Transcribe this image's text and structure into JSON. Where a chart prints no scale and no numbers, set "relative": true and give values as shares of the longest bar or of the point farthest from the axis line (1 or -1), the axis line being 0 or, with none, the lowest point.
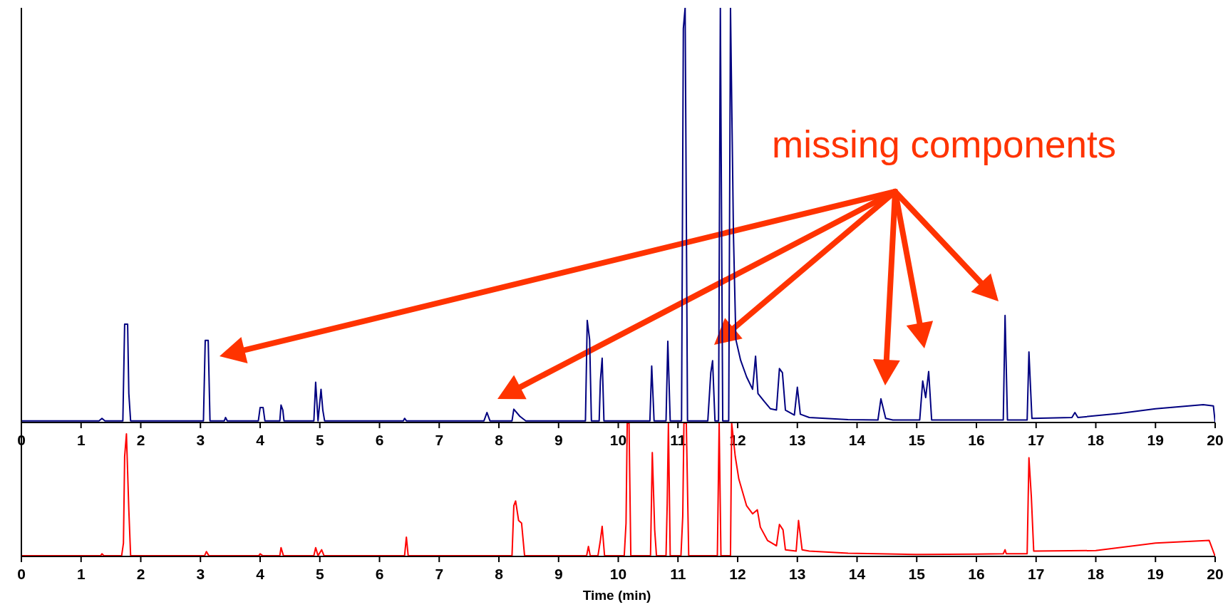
{
  "chart_data": [
    {
      "type": "line",
      "color": "#000080",
      "relative": true,
      "xlim": [
        0,
        20
      ],
      "xticks": [
        0,
        1,
        2,
        3,
        4,
        5,
        6,
        7,
        8,
        9,
        10,
        11,
        12,
        13,
        14,
        15,
        16,
        17,
        18,
        19,
        20
      ],
      "annotations": [
        "missing components"
      ],
      "x": [
        0,
        1.3,
        1.35,
        1.4,
        1.7,
        1.73,
        1.78,
        1.8,
        1.83,
        3.05,
        3.08,
        3.13,
        3.16,
        3.4,
        3.42,
        3.45,
        3.97,
        4.0,
        4.05,
        4.08,
        4.33,
        4.35,
        4.38,
        4.4,
        4.9,
        4.93,
        4.97,
        5.02,
        5.05,
        5.08,
        6.4,
        6.42,
        6.45,
        7.75,
        7.8,
        7.85,
        8.22,
        8.25,
        8.35,
        8.45,
        9.45,
        9.48,
        9.52,
        9.55,
        9.68,
        9.7,
        9.73,
        9.76,
        10.53,
        10.56,
        10.6,
        10.8,
        10.83,
        10.87,
        11.06,
        11.09,
        11.12,
        11.16,
        11.5,
        11.55,
        11.58,
        11.62,
        11.68,
        11.71,
        11.75,
        11.85,
        11.88,
        11.93,
        11.97,
        12.05,
        12.15,
        12.25,
        12.3,
        12.34,
        12.45,
        12.55,
        12.65,
        12.7,
        12.75,
        12.8,
        12.95,
        13.0,
        13.05,
        13.2,
        13.85,
        14.35,
        14.4,
        14.48,
        14.6,
        15.05,
        15.1,
        15.15,
        15.2,
        15.25,
        16.45,
        16.48,
        16.52,
        16.85,
        16.88,
        16.93,
        17.6,
        17.65,
        17.7,
        18.4,
        19.0,
        19.8,
        19.97,
        20
      ],
      "values": [
        0.004,
        0.004,
        0.01,
        0.004,
        0.004,
        0.237,
        0.237,
        0.07,
        0.004,
        0.004,
        0.198,
        0.198,
        0.004,
        0.004,
        0.012,
        0.004,
        0.004,
        0.036,
        0.036,
        0.004,
        0.004,
        0.042,
        0.03,
        0.004,
        0.004,
        0.097,
        0.004,
        0.08,
        0.03,
        0.004,
        0.004,
        0.01,
        0.004,
        0.004,
        0.024,
        0.004,
        0.004,
        0.032,
        0.015,
        0.004,
        0.004,
        0.246,
        0.2,
        0.004,
        0.004,
        0.1,
        0.155,
        0.004,
        0.004,
        0.136,
        0.004,
        0.004,
        0.196,
        0.004,
        0.004,
        0.95,
        1,
        0.004,
        0.004,
        0.12,
        0.149,
        0.004,
        0.004,
        1,
        0.004,
        0.004,
        1,
        0.45,
        0.2,
        0.15,
        0.11,
        0.08,
        0.16,
        0.07,
        0.05,
        0.033,
        0.03,
        0.13,
        0.12,
        0.03,
        0.018,
        0.085,
        0.02,
        0.012,
        0.007,
        0.006,
        0.057,
        0.01,
        0.006,
        0.006,
        0.1,
        0.06,
        0.123,
        0.006,
        0.006,
        0.258,
        0.006,
        0.006,
        0.17,
        0.01,
        0.012,
        0.024,
        0.012,
        0.022,
        0.033,
        0.043,
        0.04,
        0
      ]
    },
    {
      "type": "line",
      "color": "#ff0000",
      "relative": true,
      "xlim": [
        0,
        20
      ],
      "xticks": [
        0,
        1,
        2,
        3,
        4,
        5,
        6,
        7,
        8,
        9,
        10,
        11,
        12,
        13,
        14,
        15,
        16,
        17,
        18,
        19,
        20
      ],
      "xlabel": "Time (min)",
      "x": [
        0,
        1.33,
        1.35,
        1.38,
        1.68,
        1.71,
        1.73,
        1.76,
        1.8,
        1.83,
        3.07,
        3.1,
        3.14,
        3.98,
        4.0,
        4.04,
        4.33,
        4.35,
        4.39,
        4.9,
        4.93,
        4.97,
        5.03,
        5.07,
        6.42,
        6.45,
        6.48,
        8.22,
        8.25,
        8.28,
        8.33,
        8.38,
        8.43,
        9.47,
        9.5,
        9.53,
        9.66,
        9.7,
        9.73,
        9.77,
        10.1,
        10.13,
        10.15,
        10.18,
        10.21,
        10.54,
        10.57,
        10.61,
        10.64,
        10.8,
        10.82,
        10.84,
        10.87,
        11.05,
        11.08,
        11.1,
        11.14,
        11.18,
        11.66,
        11.69,
        11.72,
        11.88,
        11.9,
        11.96,
        12.02,
        12.15,
        12.25,
        12.33,
        12.38,
        12.5,
        12.65,
        12.7,
        12.76,
        12.8,
        12.98,
        13.02,
        13.08,
        13.2,
        13.85,
        15.0,
        16.0,
        16.45,
        16.48,
        16.5,
        16.85,
        16.88,
        16.92,
        16.96,
        18.0,
        19.0,
        19.9,
        20
      ],
      "values": [
        0.006,
        0.006,
        0.02,
        0.006,
        0.006,
        0.1,
        0.75,
        0.92,
        0.35,
        0.006,
        0.006,
        0.036,
        0.006,
        0.006,
        0.02,
        0.006,
        0.006,
        0.066,
        0.006,
        0.006,
        0.066,
        0.006,
        0.05,
        0.006,
        0.006,
        0.145,
        0.006,
        0.006,
        0.38,
        0.416,
        0.27,
        0.25,
        0.006,
        0.006,
        0.075,
        0.006,
        0.006,
        0.12,
        0.226,
        0.006,
        0.006,
        0.25,
        1,
        1,
        0.006,
        0.006,
        0.78,
        0.2,
        0.006,
        0.006,
        0.4,
        1,
        0.006,
        0.006,
        0.3,
        1,
        1,
        0.006,
        0.006,
        1,
        0.006,
        0.006,
        1,
        0.75,
        0.58,
        0.38,
        0.32,
        0.35,
        0.22,
        0.12,
        0.08,
        0.24,
        0.2,
        0.05,
        0.04,
        0.27,
        0.05,
        0.04,
        0.024,
        0.015,
        0.018,
        0.02,
        0.05,
        0.02,
        0.02,
        0.74,
        0.45,
        0.04,
        0.044,
        0.1,
        0.12,
        0
      ]
    }
  ]
}
